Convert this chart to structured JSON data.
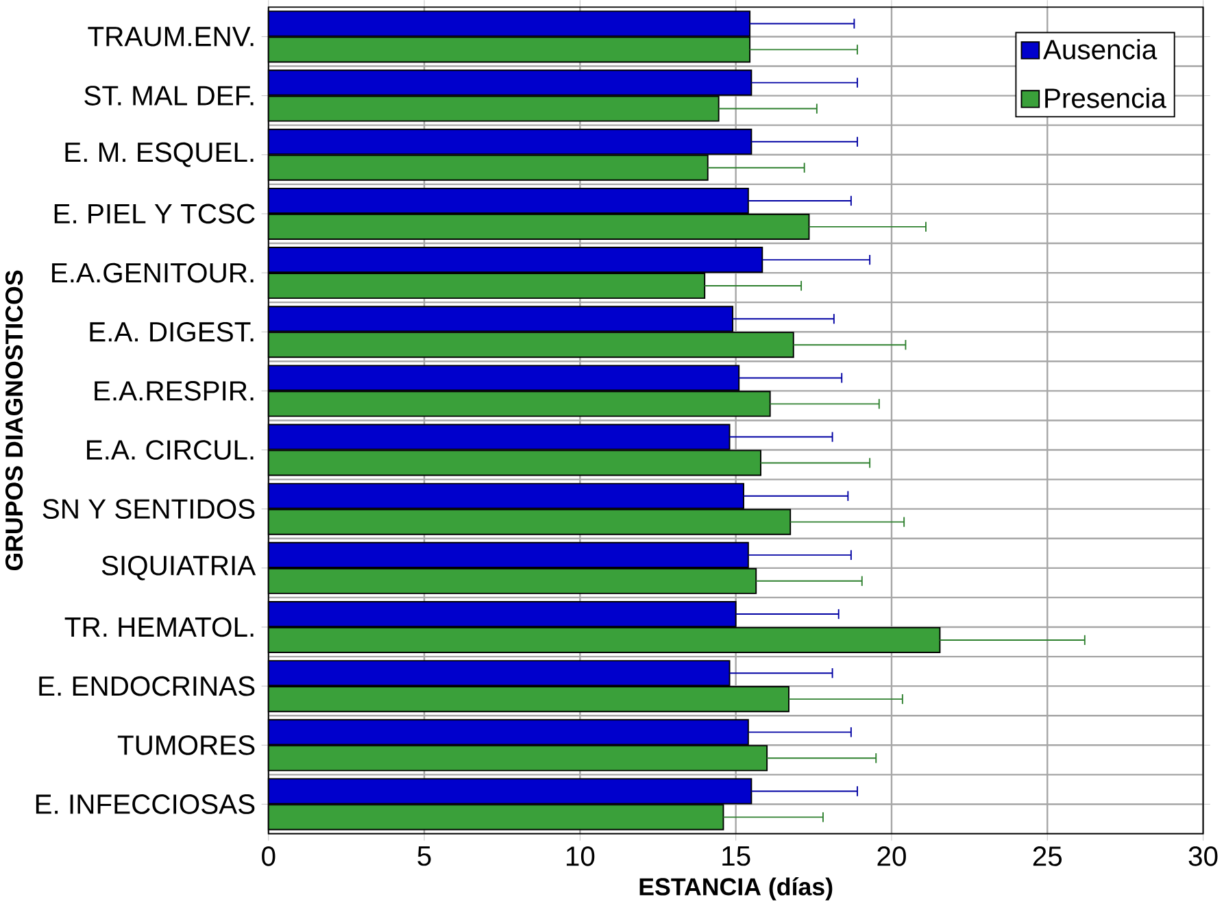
{
  "chart_data": {
    "type": "bar",
    "orientation": "horizontal",
    "xlabel": "ESTANCIA (días)",
    "ylabel": "GRUPOS DIAGNOSTICOS",
    "categories": [
      "TRAUM.ENV.",
      "ST. MAL DEF.",
      "E. M. ESQUEL.",
      "E. PIEL Y TCSC",
      "E.A.GENITOUR.",
      "E.A. DIGEST.",
      "E.A.RESPIR.",
      "E.A. CIRCUL.",
      "SN Y SENTIDOS",
      "SIQUIATRIA",
      "TR. HEMATOL.",
      "E. ENDOCRINAS",
      "TUMORES",
      "E. INFECCIOSAS"
    ],
    "series": [
      {
        "name": "Ausencia",
        "color": "#0000cc",
        "values": [
          15.45,
          15.5,
          15.5,
          15.4,
          15.85,
          14.9,
          15.1,
          14.8,
          15.25,
          15.4,
          15.0,
          14.8,
          15.4,
          15.5
        ],
        "errors": [
          3.35,
          3.4,
          3.4,
          3.3,
          3.45,
          3.25,
          3.3,
          3.3,
          3.35,
          3.3,
          3.3,
          3.3,
          3.3,
          3.4
        ]
      },
      {
        "name": "Presencia",
        "color": "#3aa03a",
        "values": [
          15.45,
          14.45,
          14.1,
          17.35,
          14.0,
          16.85,
          16.1,
          15.8,
          16.75,
          15.65,
          21.55,
          16.7,
          16.0,
          14.6
        ],
        "errors": [
          3.45,
          3.15,
          3.1,
          3.75,
          3.1,
          3.6,
          3.5,
          3.5,
          3.65,
          3.4,
          4.65,
          3.65,
          3.5,
          3.2
        ]
      }
    ],
    "xlim": [
      0,
      30
    ],
    "xticks": [
      0,
      5,
      10,
      15,
      20,
      25,
      30
    ],
    "grid": true,
    "legend": "top right"
  }
}
